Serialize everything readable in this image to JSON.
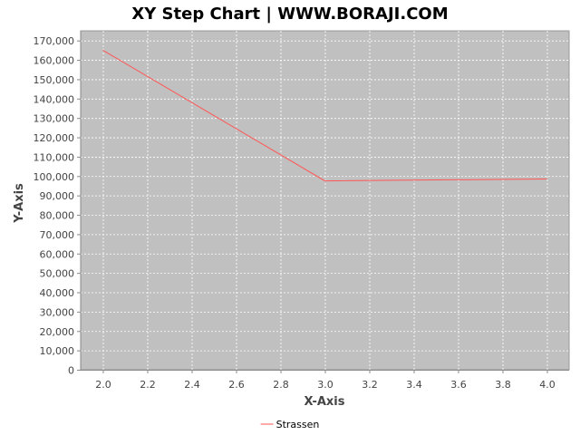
{
  "chart_data": {
    "type": "line",
    "title": "XY Step Chart | WWW.BORAJI.COM",
    "xlabel": "X-Axis",
    "ylabel": "Y-Axis",
    "xlim": [
      1.9,
      4.1
    ],
    "ylim": [
      0,
      175000
    ],
    "x_ticks": [
      2.0,
      2.2,
      2.4,
      2.6,
      2.8,
      3.0,
      3.2,
      3.4,
      3.6,
      3.8,
      4.0
    ],
    "y_ticks": [
      0,
      10000,
      20000,
      30000,
      40000,
      50000,
      60000,
      70000,
      80000,
      90000,
      100000,
      110000,
      120000,
      130000,
      140000,
      150000,
      160000,
      170000
    ],
    "grid": true,
    "legend_position": "bottom",
    "plot_background": "#c0c0c0",
    "series": [
      {
        "name": "Strassen",
        "color": "#ff5555",
        "x": [
          2.0,
          3.0,
          4.0
        ],
        "y": [
          165000,
          97500,
          98500
        ]
      }
    ]
  }
}
